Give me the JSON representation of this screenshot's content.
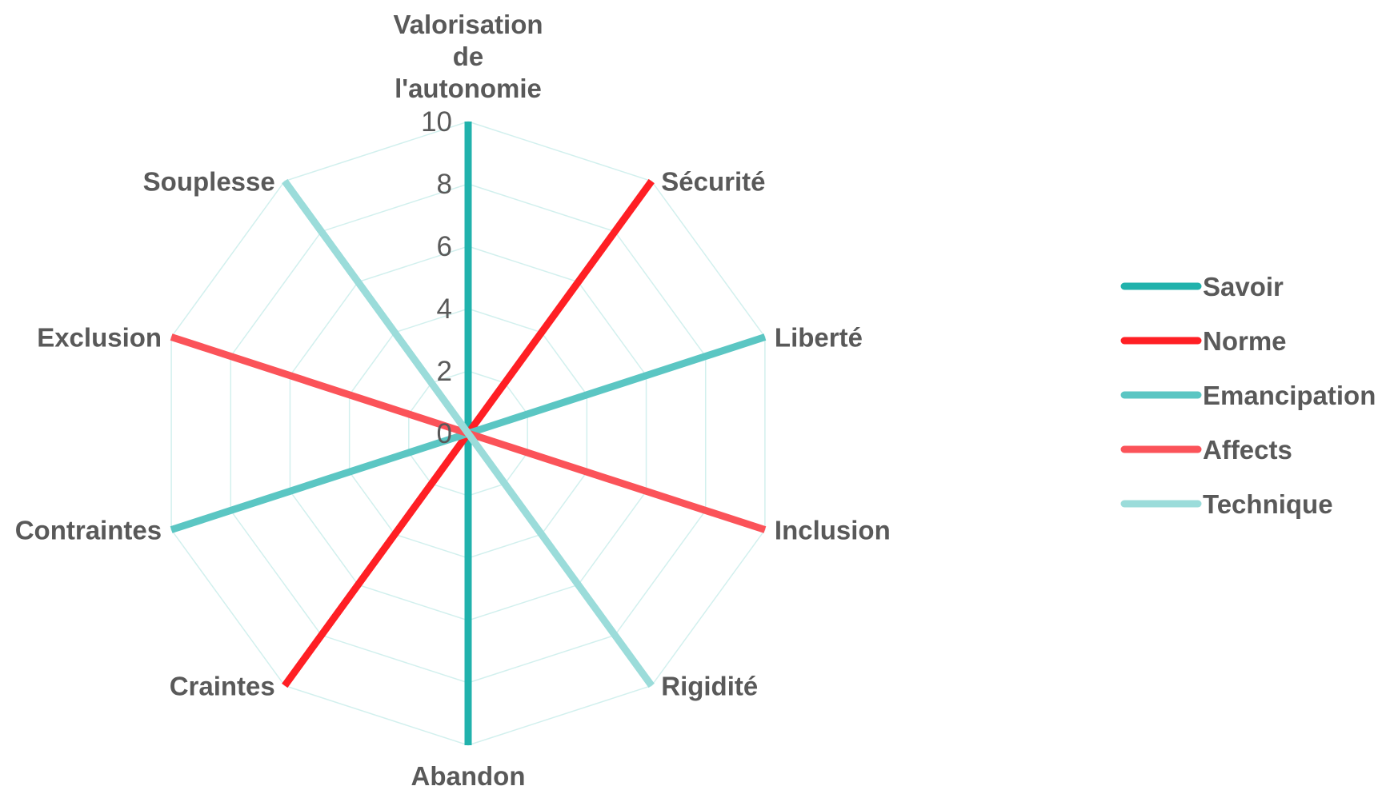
{
  "chart_data": {
    "type": "radar",
    "axes": [
      {
        "label": [
          "Valorisation",
          "de",
          "l'autonomie"
        ]
      },
      {
        "label": [
          "Sécurité"
        ]
      },
      {
        "label": [
          "Liberté"
        ]
      },
      {
        "label": [
          "Inclusion"
        ]
      },
      {
        "label": [
          "Rigidité"
        ]
      },
      {
        "label": [
          "Abandon"
        ]
      },
      {
        "label": [
          "Craintes"
        ]
      },
      {
        "label": [
          "Contraintes"
        ]
      },
      {
        "label": [
          "Exclusion"
        ]
      },
      {
        "label": [
          "Souplesse"
        ]
      }
    ],
    "r_ticks": [
      "0",
      "2",
      "4",
      "6",
      "8",
      "10"
    ],
    "r_range": [
      0,
      10
    ],
    "series": [
      {
        "name": "Savoir",
        "color": "#21b2ac",
        "values": [
          10,
          0,
          0,
          0,
          0,
          10,
          0,
          0,
          0,
          0
        ]
      },
      {
        "name": "Norme",
        "color": "#ff1f24",
        "values": [
          0,
          10,
          0,
          0,
          0,
          0,
          10,
          0,
          0,
          0
        ]
      },
      {
        "name": "Emancipation",
        "color": "#5bc6c3",
        "values": [
          0,
          0,
          10,
          0,
          0,
          0,
          0,
          10,
          0,
          0
        ]
      },
      {
        "name": "Affects",
        "color": "#fb5359",
        "values": [
          0,
          0,
          0,
          10,
          0,
          0,
          0,
          0,
          10,
          0
        ]
      },
      {
        "name": "Technique",
        "color": "#9bdcda",
        "values": [
          0,
          0,
          0,
          0,
          10,
          0,
          0,
          0,
          0,
          10
        ]
      }
    ],
    "grid_color": "#d2f0ee",
    "legend_position": "right"
  }
}
